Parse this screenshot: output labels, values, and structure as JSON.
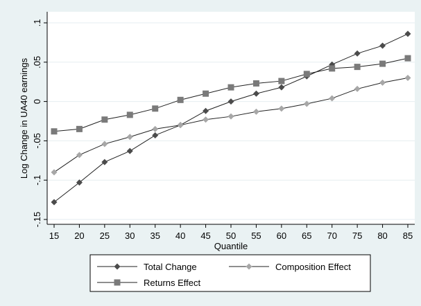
{
  "chart_data": {
    "type": "line",
    "xlabel": "Quantile",
    "ylabel": "Log Change in UA40 earnings",
    "x": [
      15,
      20,
      25,
      30,
      35,
      40,
      45,
      50,
      55,
      60,
      65,
      70,
      75,
      80,
      85
    ],
    "xlim": [
      15,
      85
    ],
    "ylim": [
      -0.15,
      0.1
    ],
    "y_ticks": [
      -0.15,
      -0.1,
      -0.05,
      0,
      0.05,
      0.1
    ],
    "y_tick_labels": [
      "-.15",
      "-.1",
      "-.05",
      "0",
      ".05",
      ".1"
    ],
    "grid": true,
    "legend_position": "bottom",
    "series": [
      {
        "name": "Total Change",
        "marker": "diamond",
        "color": "#4b4b4b",
        "values": [
          -0.128,
          -0.103,
          -0.077,
          -0.063,
          -0.043,
          -0.03,
          -0.012,
          0.0,
          0.01,
          0.018,
          0.032,
          0.047,
          0.061,
          0.071,
          0.086
        ]
      },
      {
        "name": "Composition Effect",
        "marker": "diamond",
        "color": "#a7a7a7",
        "values": [
          -0.09,
          -0.068,
          -0.054,
          -0.045,
          -0.035,
          -0.03,
          -0.023,
          -0.019,
          -0.013,
          -0.009,
          -0.003,
          0.004,
          0.016,
          0.024,
          0.03
        ]
      },
      {
        "name": "Returns Effect",
        "marker": "square",
        "color": "#7a7a7a",
        "values": [
          -0.038,
          -0.035,
          -0.023,
          -0.017,
          -0.009,
          0.002,
          0.01,
          0.018,
          0.023,
          0.026,
          0.035,
          0.042,
          0.044,
          0.048,
          0.055
        ]
      }
    ]
  }
}
